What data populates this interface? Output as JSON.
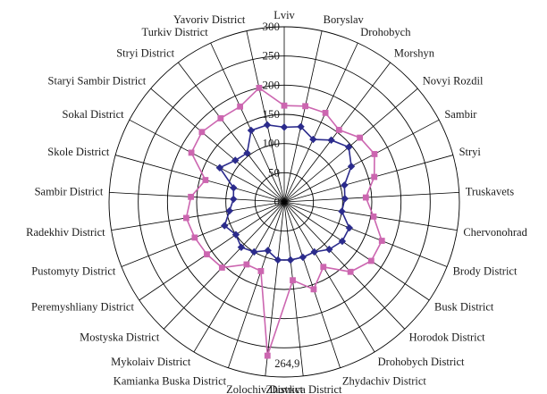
{
  "chart_data": {
    "type": "radar",
    "categories": [
      "Lviv",
      "Boryslav",
      "Drohobych",
      "Morshyn",
      "Novyi Rozdil",
      "Sambir",
      "Stryi",
      "Truskavets",
      "Chervonohrad",
      "Brody District",
      "Busk District",
      "Horodok District",
      "Drohobych District",
      "Zhydachiv District",
      "Zhovkva District",
      "Zolochiv District",
      "Kamianka Buska District",
      "Mykolaiv District",
      "Mostyska District",
      "Peremyshliany District",
      "Pustomyty District",
      "Radekhiv District",
      "Sambir District",
      "Skole District",
      "Sokal District",
      "Staryi Sambir District",
      "Stryi District",
      "Turkiv District",
      "Yavoriv District"
    ],
    "ylim": [
      0,
      300
    ],
    "ticks": [
      0,
      50,
      100,
      150,
      200,
      250,
      300
    ],
    "series": [
      {
        "color": "#2b2b8c",
        "values": [
          128,
          132,
          118,
          133,
          145,
          130,
          107,
          104,
          100,
          120,
          120,
          112,
          100,
          100,
          100,
          100,
          88,
          100,
          107,
          100,
          110,
          95,
          87,
          90,
          125,
          110,
          105,
          135,
          135
        ]
      },
      {
        "color": "#cc66b0",
        "values": [
          165,
          168,
          168,
          155,
          170,
          175,
          160,
          140,
          155,
          180,
          180,
          165,
          130,
          158,
          135,
          265,
          125,
          125,
          155,
          160,
          165,
          170,
          160,
          140,
          180,
          185,
          180,
          180,
          200
        ]
      }
    ],
    "annotations": [
      {
        "category": "Zolochiv District",
        "text": "264,9"
      }
    ],
    "grid": true
  }
}
